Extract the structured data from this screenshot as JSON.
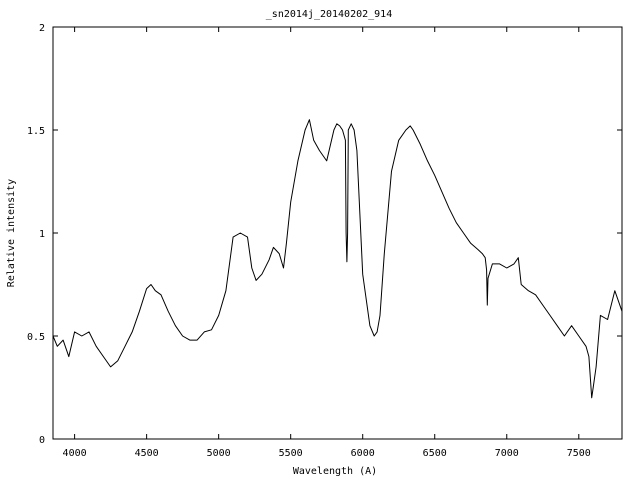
{
  "chart_data": {
    "type": "line",
    "title": "_sn2014j_20140202_914",
    "xlabel": "Wavelength (A)",
    "ylabel": "Relative intensity",
    "xlim": [
      3850,
      7800
    ],
    "ylim": [
      0,
      2
    ],
    "xticks": [
      4000,
      4500,
      5000,
      5500,
      6000,
      6500,
      7000,
      7500
    ],
    "yticks": [
      0,
      0.5,
      1,
      1.5,
      2
    ],
    "ytick_labels": [
      "0",
      "0.5",
      "1",
      "1.5",
      "2"
    ],
    "grid": false,
    "legend": "none",
    "series": [
      {
        "x": [
          3850,
          3880,
          3920,
          3960,
          4000,
          4050,
          4100,
          4150,
          4200,
          4250,
          4300,
          4350,
          4400,
          4450,
          4500,
          4530,
          4560,
          4600,
          4650,
          4700,
          4750,
          4800,
          4850,
          4900,
          4950,
          5000,
          5050,
          5100,
          5150,
          5200,
          5230,
          5260,
          5300,
          5350,
          5380,
          5420,
          5450,
          5470,
          5500,
          5550,
          5600,
          5630,
          5660,
          5700,
          5750,
          5800,
          5820,
          5840,
          5860,
          5880,
          5885,
          5890,
          5895,
          5900,
          5920,
          5940,
          5960,
          5980,
          6000,
          6050,
          6080,
          6100,
          6120,
          6150,
          6200,
          6250,
          6300,
          6330,
          6350,
          6400,
          6450,
          6500,
          6550,
          6600,
          6650,
          6700,
          6750,
          6800,
          6830,
          6850,
          6860,
          6865,
          6870,
          6900,
          6950,
          7000,
          7050,
          7080,
          7100,
          7150,
          7200,
          7250,
          7300,
          7350,
          7400,
          7450,
          7500,
          7550,
          7570,
          7590,
          7600,
          7620,
          7650,
          7700,
          7750,
          7800
        ],
        "y": [
          0.5,
          0.45,
          0.48,
          0.4,
          0.52,
          0.5,
          0.52,
          0.45,
          0.4,
          0.35,
          0.38,
          0.45,
          0.52,
          0.62,
          0.73,
          0.75,
          0.72,
          0.7,
          0.62,
          0.55,
          0.5,
          0.48,
          0.48,
          0.52,
          0.53,
          0.6,
          0.72,
          0.98,
          1.0,
          0.98,
          0.83,
          0.77,
          0.8,
          0.87,
          0.93,
          0.9,
          0.83,
          0.95,
          1.15,
          1.35,
          1.5,
          1.55,
          1.45,
          1.4,
          1.35,
          1.5,
          1.53,
          1.52,
          1.5,
          1.45,
          1.0,
          0.86,
          1.0,
          1.5,
          1.53,
          1.5,
          1.4,
          1.1,
          0.8,
          0.55,
          0.5,
          0.52,
          0.6,
          0.9,
          1.3,
          1.45,
          1.5,
          1.52,
          1.5,
          1.43,
          1.35,
          1.28,
          1.2,
          1.12,
          1.05,
          1.0,
          0.95,
          0.92,
          0.9,
          0.88,
          0.82,
          0.65,
          0.78,
          0.85,
          0.85,
          0.83,
          0.85,
          0.88,
          0.75,
          0.72,
          0.7,
          0.65,
          0.6,
          0.55,
          0.5,
          0.55,
          0.5,
          0.45,
          0.4,
          0.2,
          0.25,
          0.35,
          0.6,
          0.58,
          0.72,
          0.62
        ]
      }
    ]
  }
}
